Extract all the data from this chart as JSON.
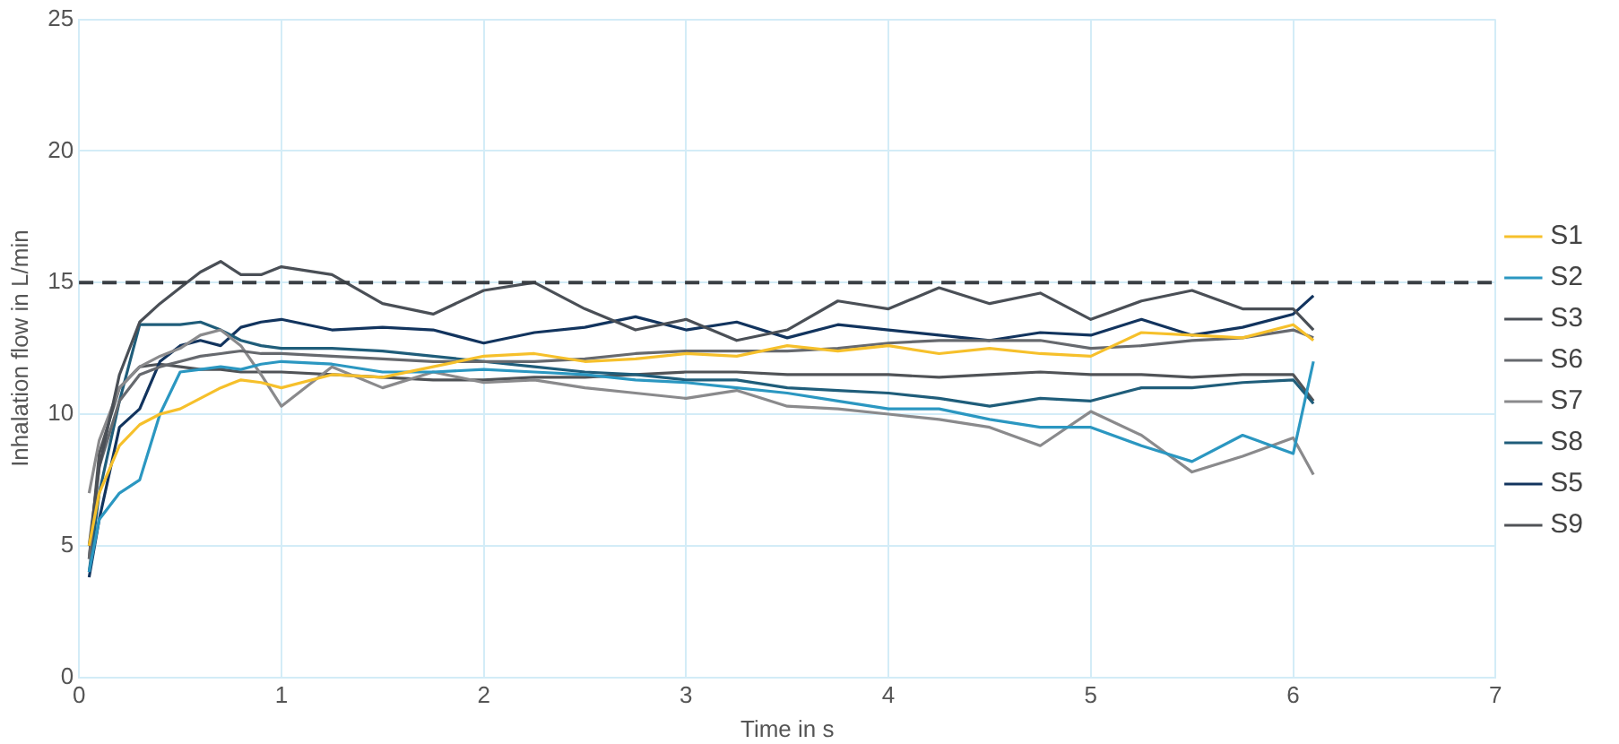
{
  "chart_data": {
    "type": "line",
    "xlabel": "Time in s",
    "ylabel": "Inhalation flow in L/min",
    "x": [
      0.05,
      0.1,
      0.2,
      0.3,
      0.4,
      0.5,
      0.6,
      0.7,
      0.8,
      0.9,
      1.0,
      1.25,
      1.5,
      1.75,
      2.0,
      2.25,
      2.5,
      2.75,
      3.0,
      3.25,
      3.5,
      3.75,
      4.0,
      4.25,
      4.5,
      4.75,
      5.0,
      5.25,
      5.5,
      5.75,
      6.0,
      6.1
    ],
    "series": [
      {
        "name": "S1",
        "color": "#f6c02b",
        "values": [
          5,
          7,
          8.8,
          9.6,
          10,
          10.2,
          10.6,
          11,
          11.3,
          11.2,
          11.0,
          11.5,
          11.4,
          11.8,
          12.2,
          12.3,
          12.0,
          12.1,
          12.3,
          12.2,
          12.6,
          12.4,
          12.6,
          12.3,
          12.5,
          12.3,
          12.2,
          13.1,
          13.0,
          12.9,
          13.4,
          12.8
        ]
      },
      {
        "name": "S2",
        "color": "#2b97c1",
        "values": [
          4,
          6,
          7,
          7.5,
          10,
          11.6,
          11.7,
          11.8,
          11.7,
          11.9,
          12.0,
          11.9,
          11.6,
          11.6,
          11.7,
          11.6,
          11.5,
          11.3,
          11.2,
          11.0,
          10.8,
          10.5,
          10.2,
          10.2,
          9.8,
          9.5,
          9.5,
          8.8,
          8.2,
          9.2,
          8.5,
          12.0
        ]
      },
      {
        "name": "S3",
        "color": "#4a4f56",
        "values": [
          5,
          8,
          11.5,
          13.5,
          14.2,
          14.8,
          15.4,
          15.8,
          15.3,
          15.3,
          15.6,
          15.3,
          14.2,
          13.8,
          14.7,
          15.0,
          14.0,
          13.2,
          13.6,
          12.8,
          13.2,
          14.3,
          14.0,
          14.8,
          14.2,
          14.6,
          13.6,
          14.3,
          14.7,
          14.0,
          14.0,
          13.2
        ]
      },
      {
        "name": "S6",
        "color": "#66696e",
        "values": [
          4.5,
          8,
          10.5,
          11.5,
          11.8,
          12.0,
          12.2,
          12.3,
          12.4,
          12.3,
          12.3,
          12.2,
          12.1,
          12.0,
          12.0,
          12.0,
          12.1,
          12.3,
          12.4,
          12.4,
          12.4,
          12.5,
          12.7,
          12.8,
          12.8,
          12.8,
          12.5,
          12.6,
          12.8,
          12.9,
          13.2,
          12.9
        ]
      },
      {
        "name": "S7",
        "color": "#8a8a8c",
        "values": [
          7,
          9,
          11,
          11.8,
          12.2,
          12.5,
          13.0,
          13.2,
          12.6,
          11.5,
          10.3,
          11.8,
          11.0,
          11.6,
          11.2,
          11.3,
          11.0,
          10.8,
          10.6,
          10.9,
          10.3,
          10.2,
          10.0,
          9.8,
          9.5,
          8.8,
          10.1,
          9.2,
          7.8,
          8.4,
          9.1,
          7.7
        ]
      },
      {
        "name": "S8",
        "color": "#1f5d7a",
        "values": [
          4,
          7,
          10.5,
          13.4,
          13.4,
          13.4,
          13.5,
          13.2,
          12.8,
          12.6,
          12.5,
          12.5,
          12.4,
          12.2,
          12.0,
          11.8,
          11.6,
          11.5,
          11.3,
          11.3,
          11.0,
          10.9,
          10.8,
          10.6,
          10.3,
          10.6,
          10.5,
          11.0,
          11.0,
          11.2,
          11.3,
          10.4
        ]
      },
      {
        "name": "S5",
        "color": "#12345e",
        "values": [
          3.8,
          6,
          9.5,
          10.2,
          12.0,
          12.6,
          12.8,
          12.6,
          13.3,
          13.5,
          13.6,
          13.2,
          13.3,
          13.2,
          12.7,
          13.1,
          13.3,
          13.7,
          13.2,
          13.5,
          12.9,
          13.4,
          13.2,
          13.0,
          12.8,
          13.1,
          13.0,
          13.6,
          13.0,
          13.3,
          13.8,
          14.5
        ]
      },
      {
        "name": "S9",
        "color": "#505357",
        "values": [
          4.5,
          8.5,
          11.0,
          11.8,
          11.9,
          11.8,
          11.7,
          11.7,
          11.6,
          11.6,
          11.6,
          11.5,
          11.4,
          11.3,
          11.3,
          11.4,
          11.4,
          11.5,
          11.6,
          11.6,
          11.5,
          11.5,
          11.5,
          11.4,
          11.5,
          11.6,
          11.5,
          11.5,
          11.4,
          11.5,
          11.5,
          10.5
        ]
      }
    ],
    "xlim": [
      0,
      7
    ],
    "xticks": [
      0,
      1,
      2,
      3,
      4,
      5,
      6,
      7
    ],
    "ylim": [
      0,
      25
    ],
    "yticks": [
      0,
      5,
      10,
      15,
      20,
      25
    ],
    "ref_lines": [
      {
        "axis": "y",
        "value": 15,
        "color": "#3a3f44",
        "line_style": "dashed"
      }
    ],
    "grid": true,
    "legend": "right",
    "marker": "none",
    "line_style": "solid"
  }
}
